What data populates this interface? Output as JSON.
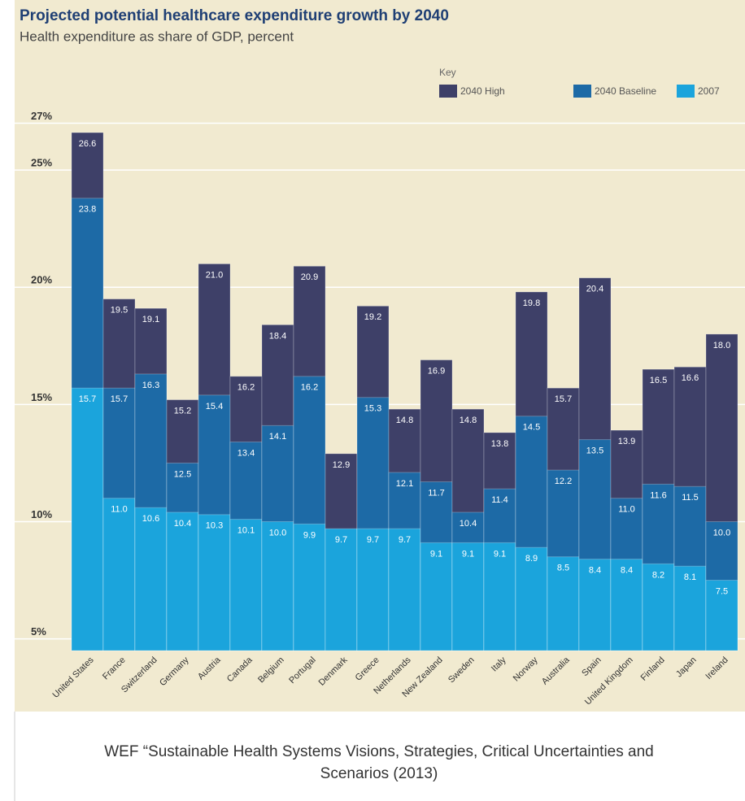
{
  "chart_data": {
    "type": "overlap_bar",
    "title": "Projected potential healthcare expenditure growth by 2040",
    "subtitle": "Health expenditure as share of GDP, percent",
    "legend_title": "Key",
    "categories": [
      "United States",
      "France",
      "Switzerland",
      "Germany",
      "Austria",
      "Canada",
      "Belgium",
      "Portugal",
      "Denmark",
      "Greece",
      "Netherlands",
      "New Zealand",
      "Sweden",
      "Italy",
      "Norway",
      "Australia",
      "Spain",
      "United Kingdom",
      "Finland",
      "Japan",
      "Ireland"
    ],
    "series": [
      {
        "name": "2040 High",
        "color": "#3e4068",
        "values": [
          26.6,
          19.5,
          19.1,
          15.2,
          21.0,
          16.2,
          18.4,
          20.9,
          12.9,
          19.2,
          14.8,
          16.9,
          14.8,
          13.8,
          19.8,
          15.7,
          20.4,
          13.9,
          16.5,
          16.6,
          18.0
        ],
        "value_labels": [
          "26.6",
          "19.5",
          "19.1",
          "15.2",
          "21.0",
          "16.2",
          "18.4",
          "20.9",
          "12.9",
          "19.2",
          "14.8",
          "16.9",
          "14.8",
          "13.8",
          "19.8",
          "15.7",
          "20.4",
          "13.9",
          "16.5",
          "16.6",
          "18.0"
        ]
      },
      {
        "name": "2040 Baseline",
        "color": "#1d6aa6",
        "values": [
          23.8,
          15.7,
          16.3,
          12.5,
          15.4,
          13.4,
          14.1,
          16.2,
          null,
          15.3,
          12.1,
          11.7,
          10.4,
          11.4,
          14.5,
          12.2,
          13.5,
          11.0,
          11.6,
          11.5,
          10.0
        ],
        "value_labels": [
          "23.8",
          "15.7",
          "16.3",
          "12.5",
          "15.4",
          "13.4",
          "14.1",
          "16.2",
          null,
          "15.3",
          "12.1",
          "11.7",
          "10.4",
          "11.4",
          "14.5",
          "12.2",
          "13.5",
          "11.0",
          "11.6",
          "11.5",
          "10.0"
        ]
      },
      {
        "name": "2007",
        "color": "#1ba4dc",
        "values": [
          15.7,
          11.0,
          10.6,
          10.4,
          10.3,
          10.1,
          10.0,
          9.9,
          9.7,
          9.7,
          9.7,
          9.1,
          9.1,
          9.1,
          8.9,
          8.5,
          8.4,
          8.4,
          8.2,
          8.1,
          7.5
        ],
        "value_labels": [
          "15.7",
          "11.0",
          "10.6",
          "10.4",
          "10.3",
          "10.1",
          "10.0",
          "9.9",
          "9.7",
          "9.7",
          "9.7",
          "9.1",
          "9.1",
          "9.1",
          "8.9",
          "8.5",
          "8.4",
          "8.4",
          "8.2",
          "8.1",
          "7.5"
        ]
      }
    ],
    "ylim": [
      4.5,
      27.4
    ],
    "yticks": [
      {
        "value": 5,
        "label": "5%"
      },
      {
        "value": 10,
        "label": "10%"
      },
      {
        "value": 15,
        "label": "15%"
      },
      {
        "value": 20,
        "label": "20%"
      },
      {
        "value": 25,
        "label": "25%"
      },
      {
        "value": 27,
        "label": "27%"
      }
    ],
    "grid": true
  },
  "source": [
    "WEF “Sustainable Health Systems Visions, Strategies, Critical Uncertainties and",
    "Scenarios (2013)"
  ]
}
